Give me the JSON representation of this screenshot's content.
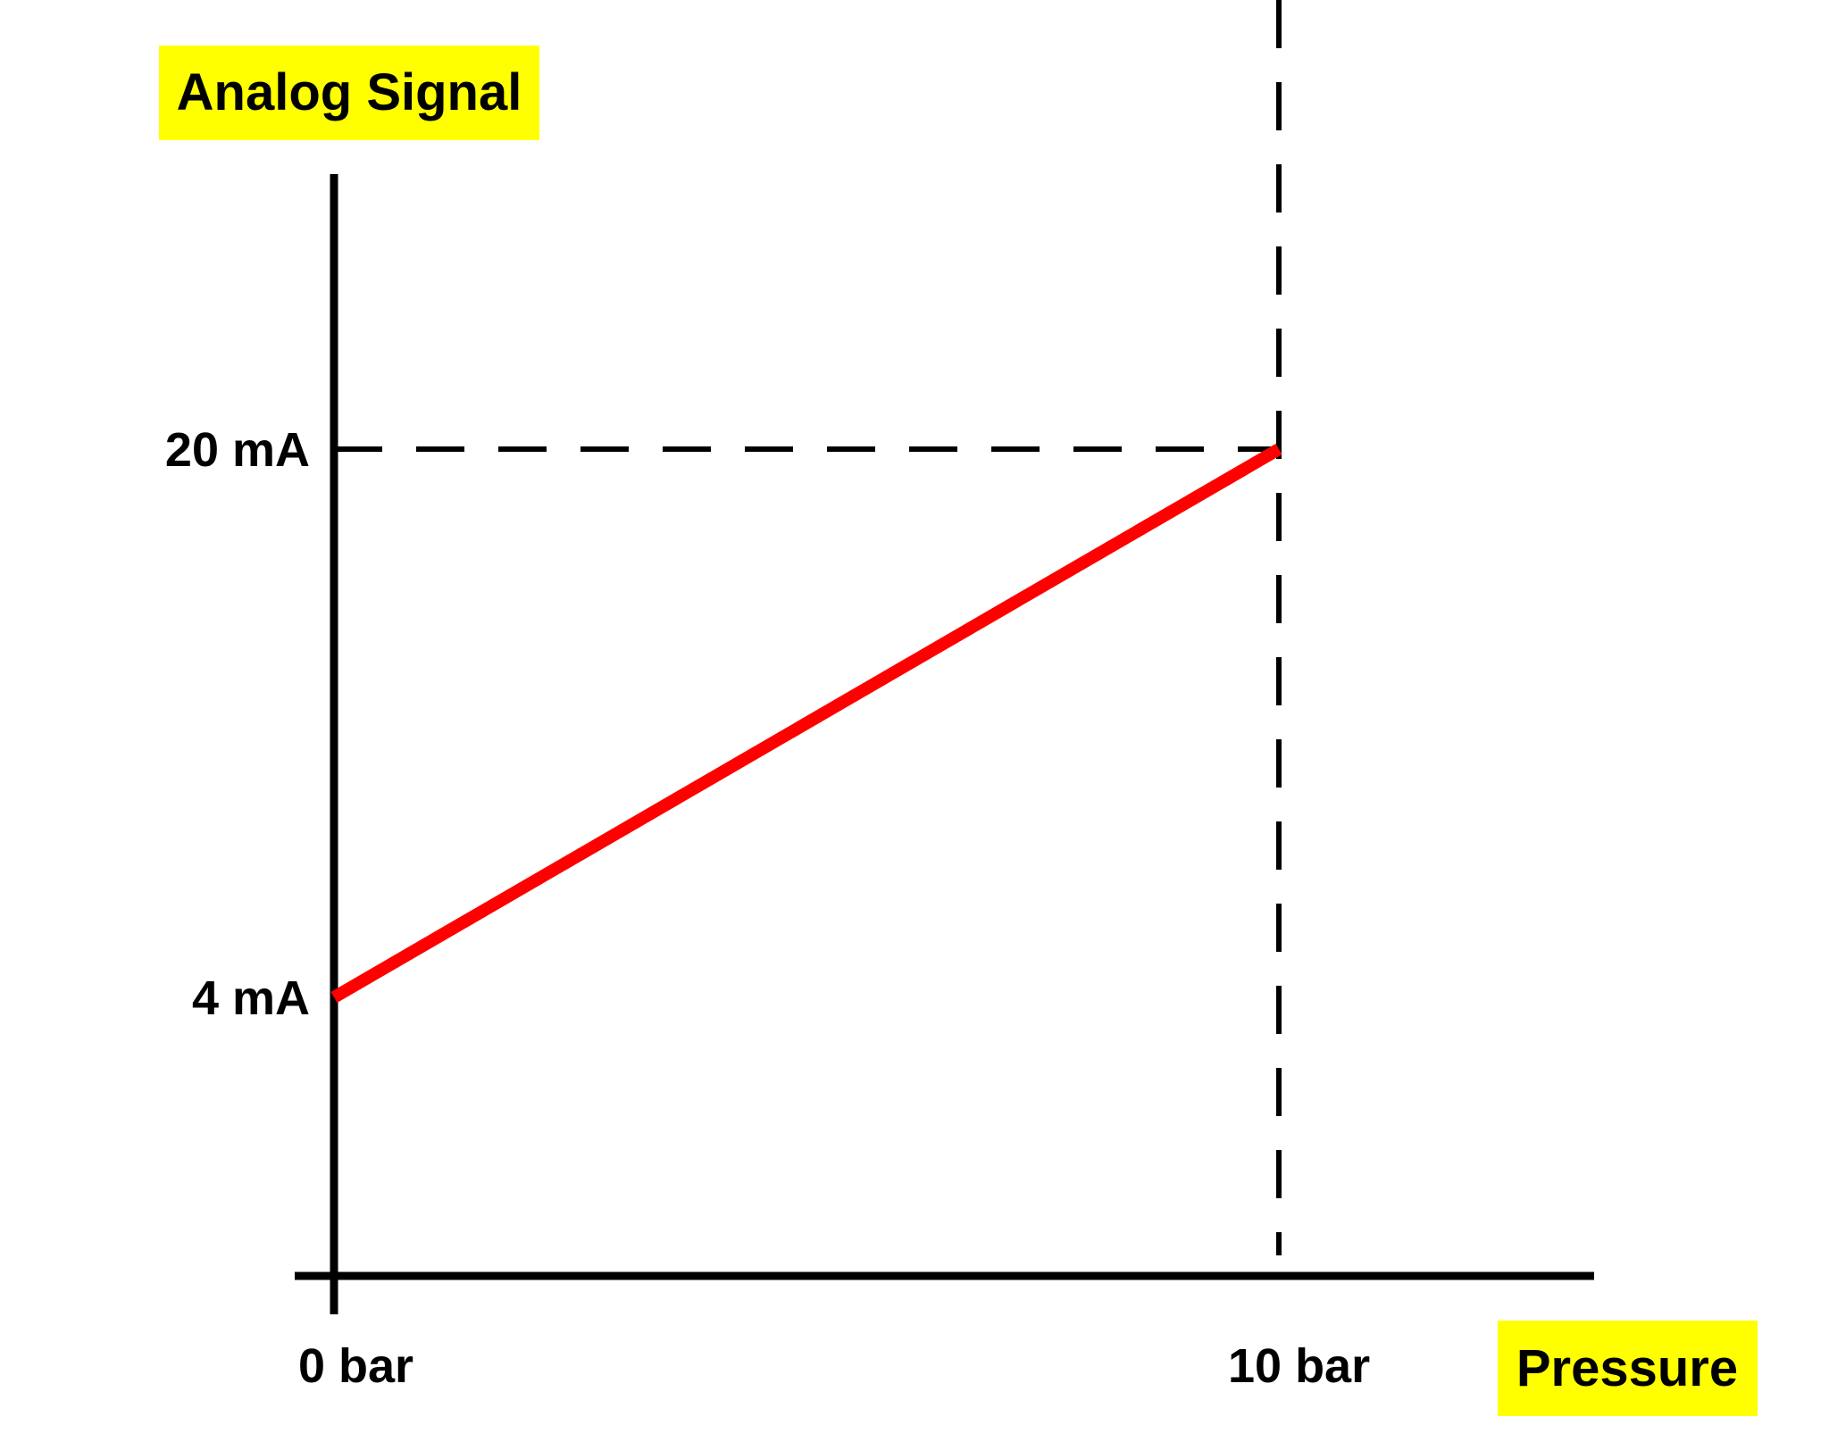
{
  "colors": {
    "background": "#ffffff",
    "axis": "#000000",
    "guide": "#000000",
    "line": "#ff0000",
    "label_highlight": "#ffff00",
    "text": "#000000"
  },
  "chart_data": {
    "type": "line",
    "title": "",
    "xlabel": "Pressure",
    "ylabel": "Analog Signal",
    "x_unit": "bar",
    "y_unit": "mA",
    "xlim": [
      0,
      13.4
    ],
    "ylim": [
      -4.6,
      28.4
    ],
    "x_ticks": [
      {
        "value": 0,
        "label": "0 bar"
      },
      {
        "value": 10,
        "label": "10 bar"
      }
    ],
    "y_ticks": [
      {
        "value": 4,
        "label": "4 mA"
      },
      {
        "value": 20,
        "label": "20 mA"
      }
    ],
    "grid": false,
    "legend": false,
    "series": [
      {
        "x": [
          0,
          10
        ],
        "y": [
          4,
          20
        ]
      }
    ],
    "guides": [
      {
        "type": "horizontal-dashed",
        "y": 20,
        "x_from": 0,
        "x_to": 10
      },
      {
        "type": "vertical-dashed",
        "x": 10,
        "y_from": -2.5,
        "y_to": 20
      }
    ]
  }
}
